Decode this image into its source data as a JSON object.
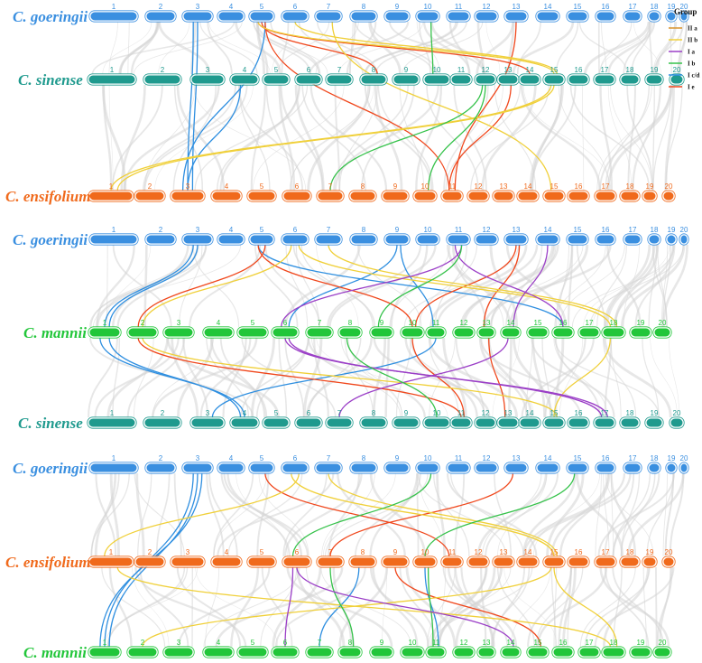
{
  "colors": {
    "blue": "#3a8fe0",
    "teal": "#1f9a8e",
    "orange": "#f06a1c",
    "green": "#22c63a",
    "background_link": "#d3d3d3"
  },
  "species": {
    "goeringii": "C. goeringii",
    "sinense": "C. sinense",
    "ensifolium": "C. ensifolium",
    "mannii": "C. mannii"
  },
  "chromosome_labels": [
    "1",
    "2",
    "3",
    "4",
    "5",
    "6",
    "7",
    "8",
    "9",
    "10",
    "11",
    "12",
    "13",
    "14",
    "15",
    "16",
    "17",
    "18",
    "19",
    "20"
  ],
  "legend": {
    "title": "Group",
    "items": [
      {
        "label": "II a",
        "color": "#d8932a"
      },
      {
        "label": "II b",
        "color": "#f0d03a"
      },
      {
        "label": "I a",
        "color": "#9b3fc7"
      },
      {
        "label": "I b",
        "color": "#35c24a"
      },
      {
        "label": "I c/d",
        "color": "#2f8fe0"
      },
      {
        "label": "I e",
        "color": "#f0471c"
      }
    ]
  },
  "panels": [
    {
      "rows": [
        {
          "species": "goeringii",
          "color": "blue"
        },
        {
          "species": "sinense",
          "color": "teal"
        },
        {
          "species": "ensifolium",
          "color": "orange"
        }
      ],
      "links": [
        {
          "from_row": 0,
          "from_chr": 3,
          "to_row": 2,
          "to_chr": 3,
          "group": "I c/d"
        },
        {
          "from_row": 0,
          "from_chr": 3,
          "to_row": 2,
          "to_chr": 3,
          "group": "I c/d"
        },
        {
          "from_row": 0,
          "from_chr": 5,
          "to_row": 2,
          "to_chr": 3,
          "group": "I c/d"
        },
        {
          "from_row": 1,
          "from_chr": 4,
          "to_row": 2,
          "to_chr": 3,
          "group": "I c/d"
        },
        {
          "from_row": 0,
          "from_chr": 5,
          "to_row": 1,
          "to_chr": 8,
          "group": "I e"
        },
        {
          "from_row": 0,
          "from_chr": 5,
          "to_row": 2,
          "to_chr": 11,
          "group": "I e"
        },
        {
          "from_row": 0,
          "from_chr": 5,
          "to_row": 1,
          "to_chr": 14,
          "group": "I e"
        },
        {
          "from_row": 0,
          "from_chr": 13,
          "to_row": 2,
          "to_chr": 11,
          "group": "I e"
        },
        {
          "from_row": 1,
          "from_chr": 13,
          "to_row": 2,
          "to_chr": 11,
          "group": "I e"
        },
        {
          "from_row": 0,
          "from_chr": 5,
          "to_row": 1,
          "to_chr": 15,
          "group": "II b"
        },
        {
          "from_row": 0,
          "from_chr": 6,
          "to_row": 1,
          "to_chr": 15,
          "group": "II b"
        },
        {
          "from_row": 0,
          "from_chr": 7,
          "to_row": 2,
          "to_chr": 15,
          "group": "II b"
        },
        {
          "from_row": 1,
          "from_chr": 15,
          "to_row": 2,
          "to_chr": 1,
          "group": "II b"
        },
        {
          "from_row": 1,
          "from_chr": 15,
          "to_row": 2,
          "to_chr": 1,
          "group": "II b"
        },
        {
          "from_row": 0,
          "from_chr": 10,
          "to_row": 1,
          "to_chr": 10,
          "group": "I b"
        },
        {
          "from_row": 1,
          "from_chr": 12,
          "to_row": 2,
          "to_chr": 7,
          "group": "I b"
        },
        {
          "from_row": 1,
          "from_chr": 12,
          "to_row": 2,
          "to_chr": 10,
          "group": "I b"
        }
      ]
    },
    {
      "rows": [
        {
          "species": "goeringii",
          "color": "blue"
        },
        {
          "species": "mannii",
          "color": "green"
        },
        {
          "species": "sinense",
          "color": "teal"
        }
      ],
      "links": [
        {
          "from_row": 0,
          "from_chr": 3,
          "to_row": 1,
          "to_chr": 1,
          "group": "I c/d"
        },
        {
          "from_row": 0,
          "from_chr": 3,
          "to_row": 1,
          "to_chr": 1,
          "group": "I c/d"
        },
        {
          "from_row": 1,
          "from_chr": 1,
          "to_row": 2,
          "to_chr": 4,
          "group": "I c/d"
        },
        {
          "from_row": 1,
          "from_chr": 1,
          "to_row": 2,
          "to_chr": 4,
          "group": "I c/d"
        },
        {
          "from_row": 0,
          "from_chr": 9,
          "to_row": 1,
          "to_chr": 6,
          "group": "I c/d"
        },
        {
          "from_row": 0,
          "from_chr": 9,
          "to_row": 1,
          "to_chr": 11,
          "group": "I c/d"
        },
        {
          "from_row": 0,
          "from_chr": 5,
          "to_row": 1,
          "to_chr": 16,
          "group": "I c/d"
        },
        {
          "from_row": 1,
          "from_chr": 11,
          "to_row": 2,
          "to_chr": 3,
          "group": "I c/d"
        },
        {
          "from_row": 0,
          "from_chr": 5,
          "to_row": 1,
          "to_chr": 2,
          "group": "I e"
        },
        {
          "from_row": 0,
          "from_chr": 5,
          "to_row": 1,
          "to_chr": 10,
          "group": "I e"
        },
        {
          "from_row": 0,
          "from_chr": 13,
          "to_row": 1,
          "to_chr": 10,
          "group": "I e"
        },
        {
          "from_row": 0,
          "from_chr": 13,
          "to_row": 1,
          "to_chr": 13,
          "group": "I e"
        },
        {
          "from_row": 1,
          "from_chr": 2,
          "to_row": 2,
          "to_chr": 11,
          "group": "I e"
        },
        {
          "from_row": 1,
          "from_chr": 10,
          "to_row": 2,
          "to_chr": 11,
          "group": "I e"
        },
        {
          "from_row": 1,
          "from_chr": 13,
          "to_row": 2,
          "to_chr": 13,
          "group": "I e"
        },
        {
          "from_row": 0,
          "from_chr": 6,
          "to_row": 1,
          "to_chr": 2,
          "group": "II b"
        },
        {
          "from_row": 0,
          "from_chr": 7,
          "to_row": 1,
          "to_chr": 18,
          "group": "II b"
        },
        {
          "from_row": 0,
          "from_chr": 6,
          "to_row": 1,
          "to_chr": 18,
          "group": "II b"
        },
        {
          "from_row": 1,
          "from_chr": 18,
          "to_row": 2,
          "to_chr": 15,
          "group": "II b"
        },
        {
          "from_row": 1,
          "from_chr": 2,
          "to_row": 2,
          "to_chr": 15,
          "group": "II b"
        },
        {
          "from_row": 0,
          "from_chr": 11,
          "to_row": 1,
          "to_chr": 6,
          "group": "I a"
        },
        {
          "from_row": 0,
          "from_chr": 11,
          "to_row": 1,
          "to_chr": 16,
          "group": "I a"
        },
        {
          "from_row": 0,
          "from_chr": 14,
          "to_row": 1,
          "to_chr": 14,
          "group": "I a"
        },
        {
          "from_row": 1,
          "from_chr": 6,
          "to_row": 2,
          "to_chr": 17,
          "group": "I a"
        },
        {
          "from_row": 1,
          "from_chr": 14,
          "to_row": 2,
          "to_chr": 7,
          "group": "I a"
        },
        {
          "from_row": 1,
          "from_chr": 6,
          "to_row": 2,
          "to_chr": 17,
          "group": "I a"
        },
        {
          "from_row": 0,
          "from_chr": 11,
          "to_row": 1,
          "to_chr": 9,
          "group": "I b"
        },
        {
          "from_row": 1,
          "from_chr": 8,
          "to_row": 2,
          "to_chr": 10,
          "group": "I b"
        }
      ]
    },
    {
      "rows": [
        {
          "species": "goeringii",
          "color": "blue"
        },
        {
          "species": "ensifolium",
          "color": "orange"
        },
        {
          "species": "mannii",
          "color": "green"
        }
      ],
      "links": [
        {
          "from_row": 0,
          "from_chr": 3,
          "to_row": 2,
          "to_chr": 1,
          "group": "I c/d"
        },
        {
          "from_row": 0,
          "from_chr": 3,
          "to_row": 2,
          "to_chr": 1,
          "group": "I c/d"
        },
        {
          "from_row": 0,
          "from_chr": 3,
          "to_row": 2,
          "to_chr": 1,
          "group": "I c/d"
        },
        {
          "from_row": 1,
          "from_chr": 8,
          "to_row": 2,
          "to_chr": 7,
          "group": "I c/d"
        },
        {
          "from_row": 1,
          "from_chr": 10,
          "to_row": 2,
          "to_chr": 11,
          "group": "I c/d"
        },
        {
          "from_row": 0,
          "from_chr": 5,
          "to_row": 1,
          "to_chr": 11,
          "group": "I e"
        },
        {
          "from_row": 0,
          "from_chr": 13,
          "to_row": 1,
          "to_chr": 7,
          "group": "I e"
        },
        {
          "from_row": 1,
          "from_chr": 9,
          "to_row": 2,
          "to_chr": 15,
          "group": "I e"
        },
        {
          "from_row": 0,
          "from_chr": 6,
          "to_row": 1,
          "to_chr": 1,
          "group": "II b"
        },
        {
          "from_row": 0,
          "from_chr": 6,
          "to_row": 1,
          "to_chr": 15,
          "group": "II b"
        },
        {
          "from_row": 0,
          "from_chr": 7,
          "to_row": 1,
          "to_chr": 15,
          "group": "II b"
        },
        {
          "from_row": 1,
          "from_chr": 1,
          "to_row": 2,
          "to_chr": 18,
          "group": "II b"
        },
        {
          "from_row": 1,
          "from_chr": 15,
          "to_row": 2,
          "to_chr": 2,
          "group": "II b"
        },
        {
          "from_row": 1,
          "from_chr": 15,
          "to_row": 2,
          "to_chr": 18,
          "group": "II b"
        },
        {
          "from_row": 0,
          "from_chr": 10,
          "to_row": 1,
          "to_chr": 6,
          "group": "I b"
        },
        {
          "from_row": 0,
          "from_chr": 15,
          "to_row": 1,
          "to_chr": 10,
          "group": "I b"
        },
        {
          "from_row": 1,
          "from_chr": 7,
          "to_row": 2,
          "to_chr": 8,
          "group": "I b"
        },
        {
          "from_row": 1,
          "from_chr": 10,
          "to_row": 2,
          "to_chr": 11,
          "group": "I b"
        },
        {
          "from_row": 1,
          "from_chr": 6,
          "to_row": 2,
          "to_chr": 6,
          "group": "I a"
        },
        {
          "from_row": 1,
          "from_chr": 6,
          "to_row": 2,
          "to_chr": 14,
          "group": "I a"
        }
      ]
    }
  ]
}
